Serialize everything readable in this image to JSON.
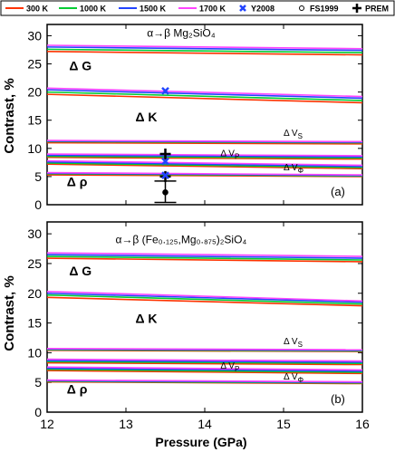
{
  "legend": {
    "placement": "top",
    "entries": [
      {
        "label": "300 K",
        "kind": "line",
        "color": "#ff3300"
      },
      {
        "label": "1000 K",
        "kind": "line",
        "color": "#00cc33"
      },
      {
        "label": "1500 K",
        "kind": "line",
        "color": "#2244ff"
      },
      {
        "label": "1700 K",
        "kind": "line",
        "color": "#ff44ff"
      },
      {
        "label": "Y2008",
        "kind": "x-marker",
        "color": "#2244ff"
      },
      {
        "label": "FS1999",
        "kind": "circle-marker",
        "color": "#000000"
      },
      {
        "label": "PREM",
        "kind": "plus-marker",
        "color": "#000000"
      }
    ]
  },
  "shared_axes": {
    "xlabel": "Pressure (GPa)",
    "ylabel": "Contrast, %",
    "xlim": [
      12,
      16
    ],
    "ylim": [
      0,
      32
    ],
    "xticks": [
      12,
      13,
      14,
      15,
      16
    ],
    "yticks": [
      0,
      5,
      10,
      15,
      20,
      25,
      30
    ],
    "grid": false
  },
  "chart_data": [
    {
      "type": "line",
      "panel_label": "(a)",
      "title": "α→β Mg₂SiO₄",
      "x": [
        12,
        16
      ],
      "groups": [
        {
          "label": "Δ G",
          "sub": "",
          "values": {
            "300 K": [
              27.2,
              26.6
            ],
            "1000 K": [
              27.6,
              27.0
            ],
            "1500 K": [
              28.0,
              27.4
            ],
            "1700 K": [
              28.3,
              27.7
            ]
          }
        },
        {
          "label": "Δ K",
          "sub": "",
          "values": {
            "300 K": [
              19.6,
              18.1
            ],
            "1000 K": [
              20.0,
              18.5
            ],
            "1500 K": [
              20.4,
              18.9
            ],
            "1700 K": [
              20.7,
              19.2
            ]
          }
        },
        {
          "label": "Δ V",
          "sub": "S",
          "values": {
            "300 K": [
              11.0,
              10.8
            ],
            "1000 K": [
              11.2,
              11.0
            ],
            "1500 K": [
              11.3,
              11.1
            ],
            "1700 K": [
              11.4,
              11.2
            ]
          }
        },
        {
          "label": "Δ V",
          "sub": "P",
          "values": {
            "300 K": [
              8.4,
              8.1
            ],
            "1000 K": [
              8.6,
              8.3
            ],
            "1500 K": [
              8.8,
              8.5
            ],
            "1700 K": [
              9.0,
              8.7
            ]
          }
        },
        {
          "label": "Δ V",
          "sub": "Φ",
          "values": {
            "300 K": [
              7.2,
              6.4
            ],
            "1000 K": [
              7.4,
              6.6
            ],
            "1500 K": [
              7.6,
              6.8
            ],
            "1700 K": [
              7.8,
              7.0
            ]
          }
        },
        {
          "label": "Δ ρ",
          "sub": "",
          "values": {
            "300 K": [
              5.3,
              5.0
            ],
            "1000 K": [
              5.5,
              5.1
            ],
            "1500 K": [
              5.6,
              5.2
            ],
            "1700 K": [
              5.7,
              5.3
            ]
          }
        }
      ],
      "y2008": [
        {
          "x": 13.5,
          "y": 20.2
        },
        {
          "x": 13.5,
          "y": 7.7
        },
        {
          "x": 13.5,
          "y": 5.2
        }
      ],
      "fs1999": [
        {
          "x": 13.5,
          "y": 2.2
        }
      ],
      "prem": [
        {
          "x": 13.5,
          "y": 9.0
        },
        {
          "x": 13.5,
          "y": 5.0
        },
        {
          "x": 13.5,
          "y": 4.2,
          "err": [
            0.4,
            4.2
          ]
        }
      ]
    },
    {
      "type": "line",
      "panel_label": "(b)",
      "title": "α→β (Fe₀.₁₂₅,Mg₀.₈₇₅)₂SiO₄",
      "x": [
        12,
        16
      ],
      "groups": [
        {
          "label": "Δ G",
          "sub": "",
          "values": {
            "300 K": [
              25.9,
              25.3
            ],
            "1000 K": [
              26.2,
              25.6
            ],
            "1500 K": [
              26.5,
              25.9
            ],
            "1700 K": [
              26.8,
              26.2
            ]
          }
        },
        {
          "label": "Δ K",
          "sub": "",
          "values": {
            "300 K": [
              19.3,
              17.9
            ],
            "1000 K": [
              19.7,
              18.2
            ],
            "1500 K": [
              20.0,
              18.5
            ],
            "1700 K": [
              20.3,
              18.7
            ]
          }
        },
        {
          "label": "Δ V",
          "sub": "S",
          "values": {
            "300 K": [
              10.4,
              10.2
            ],
            "1000 K": [
              10.5,
              10.3
            ],
            "1500 K": [
              10.6,
              10.4
            ],
            "1700 K": [
              10.7,
              10.5
            ]
          }
        },
        {
          "label": "Δ V",
          "sub": "P",
          "values": {
            "300 K": [
              8.3,
              8.0
            ],
            "1000 K": [
              8.5,
              8.2
            ],
            "1500 K": [
              8.7,
              8.4
            ],
            "1700 K": [
              8.9,
              8.6
            ]
          }
        },
        {
          "label": "Δ V",
          "sub": "Φ",
          "values": {
            "300 K": [
              7.0,
              6.5
            ],
            "1000 K": [
              7.2,
              6.7
            ],
            "1500 K": [
              7.4,
              6.9
            ],
            "1700 K": [
              7.6,
              7.1
            ]
          }
        },
        {
          "label": "Δ ρ",
          "sub": "",
          "values": {
            "300 K": [
              5.1,
              4.8
            ],
            "1000 K": [
              5.2,
              4.9
            ],
            "1500 K": [
              5.3,
              5.0
            ],
            "1700 K": [
              5.4,
              5.1
            ]
          }
        }
      ],
      "y2008": [],
      "fs1999": [],
      "prem": []
    }
  ]
}
